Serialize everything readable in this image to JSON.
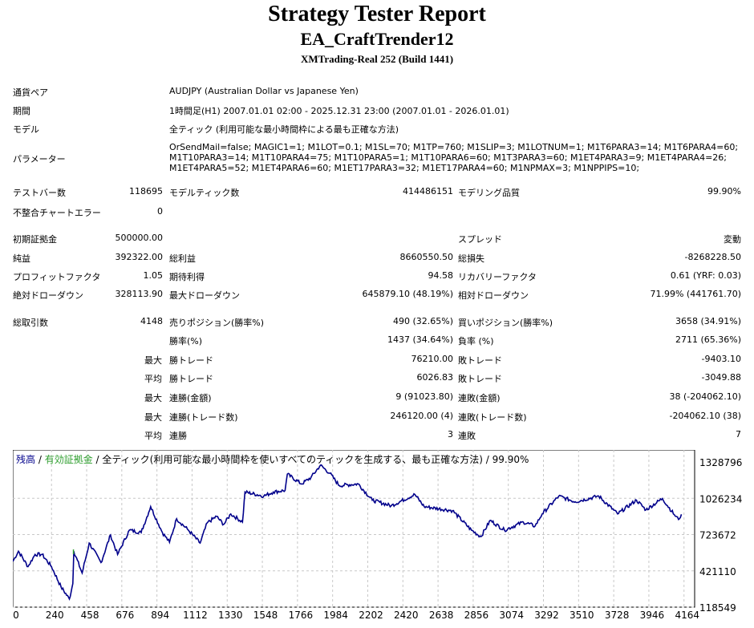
{
  "header": {
    "title": "Strategy Tester Report",
    "ea": "EA_CraftTrender12",
    "server": "XMTrading-Real 252 (Build 1441)"
  },
  "info": [
    {
      "label": "通貨ペア",
      "value": "AUDJPY (Australian Dollar vs Japanese Yen)"
    },
    {
      "label": "期間",
      "value": "1時間足(H1) 2007.01.01 02:00 - 2025.12.31 23:00 (2007.01.01 - 2026.01.01)"
    },
    {
      "label": "モデル",
      "value": "全ティック (利用可能な最小時間枠による最も正確な方法)"
    },
    {
      "label": "パラメーター",
      "value": "OrSendMail=false; MAGIC1=1; M1LOT=0.1; M1SL=70; M1TP=760; M1SLIP=3; M1LOTNUM=1; M1T6PARA3=14; M1T6PARA4=60; M1T10PARA3=14; M1T10PARA4=75; M1T10PARA5=1; M1T10PARA6=60; M1T3PARA3=60; M1ET4PARA3=9; M1ET4PARA4=26; M1ET4PARA5=52; M1ET4PARA6=60; M1ET17PARA3=32; M1ET17PARA4=60; M1NPMAX=3; M1NPPIPS=10;"
    }
  ],
  "stats": [
    [
      "テストバー数",
      "118695",
      "モデルティック数",
      "414486151",
      "モデリング品質",
      "99.90%"
    ],
    [
      "不整合チャートエラー",
      "0",
      "",
      "",
      "",
      ""
    ],
    [
      "初期証拠金",
      "500000.00",
      "",
      "",
      "スプレッド",
      "変動"
    ],
    [
      "純益",
      "392322.00",
      "総利益",
      "8660550.50",
      "総損失",
      "-8268228.50"
    ],
    [
      "プロフィットファクタ",
      "1.05",
      "期待利得",
      "94.58",
      "リカバリーファクタ",
      "0.61 (YRF: 0.03)"
    ],
    [
      "絶対ドローダウン",
      "328113.90",
      "最大ドローダウン",
      "645879.10 (48.19%)",
      "相対ドローダウン",
      "71.99% (441761.70)"
    ],
    [
      "総取引数",
      "4148",
      "売りポジション(勝率%)",
      "490 (32.65%)",
      "買いポジション(勝率%)",
      "3658 (34.91%)"
    ],
    [
      "",
      "",
      "勝率(%)",
      "1437 (34.64%)",
      "負率 (%)",
      "2711 (65.36%)"
    ],
    [
      "",
      "最大",
      "勝トレード",
      "76210.00",
      "敗トレード",
      "-9403.10"
    ],
    [
      "",
      "平均",
      "勝トレード",
      "6026.83",
      "敗トレード",
      "-3049.88"
    ],
    [
      "",
      "最大",
      "連勝(金額)",
      "9 (91023.80)",
      "連敗(金額)",
      "38 (-204062.10)"
    ],
    [
      "",
      "最大",
      "連勝(トレード数)",
      "246120.00 (4)",
      "連敗(トレード数)",
      "-204062.10 (38)"
    ],
    [
      "",
      "平均",
      "連勝",
      "3",
      "連敗",
      "7"
    ]
  ],
  "chart_data": {
    "type": "line",
    "legend": {
      "balance": "残高",
      "equity": "有効証拠金",
      "model": "全ティック(利用可能な最小時間枠を使いすべてのティックを生成する、最も正確な方法)",
      "quality": "99.90%"
    },
    "colors": {
      "balance": "#00008b",
      "equity": "#2e9e2e",
      "grid": "#c8c8c8"
    },
    "yticks": [
      1328796,
      1026234,
      723672,
      421110,
      118549
    ],
    "xticks": [
      0,
      240,
      458,
      676,
      894,
      1112,
      1330,
      1548,
      1766,
      1984,
      2202,
      2420,
      2638,
      2856,
      3074,
      3292,
      3510,
      3728,
      3946,
      4164
    ],
    "ylim": [
      118549,
      1429650
    ],
    "xlim": [
      0,
      4230
    ],
    "series": [
      {
        "name": "残高",
        "points": [
          [
            0,
            500000
          ],
          [
            35,
            585086
          ],
          [
            94,
            456627
          ],
          [
            138,
            558042
          ],
          [
            181,
            558042
          ],
          [
            240,
            456627
          ],
          [
            299,
            287602
          ],
          [
            351,
            186187
          ],
          [
            372,
            314646
          ],
          [
            378,
            585086
          ],
          [
            430,
            402539
          ],
          [
            474,
            652696
          ],
          [
            547,
            490432
          ],
          [
            606,
            720306
          ],
          [
            650,
            558042
          ],
          [
            723,
            760872
          ],
          [
            796,
            740589
          ],
          [
            855,
            956941
          ],
          [
            928,
            740589
          ],
          [
            972,
            659457
          ],
          [
            1016,
            855526
          ],
          [
            1089,
            760872
          ],
          [
            1162,
            652696
          ],
          [
            1206,
            821721
          ],
          [
            1264,
            875809
          ],
          [
            1308,
            808199
          ],
          [
            1352,
            896092
          ],
          [
            1425,
            828482
          ],
          [
            1440,
            1078639
          ],
          [
            1557,
            1044834
          ],
          [
            1616,
            1078639
          ],
          [
            1689,
            1092161
          ],
          [
            1703,
            1227381
          ],
          [
            1791,
            1146249
          ],
          [
            1850,
            1200337
          ],
          [
            1908,
            1301752
          ],
          [
            1967,
            1234142
          ],
          [
            2025,
            1132727
          ],
          [
            2143,
            1146249
          ],
          [
            2230,
            1011029
          ],
          [
            2347,
            963702
          ],
          [
            2494,
            1058356
          ],
          [
            2552,
            956941
          ],
          [
            2728,
            923136
          ],
          [
            2845,
            760872
          ],
          [
            2904,
            706784
          ],
          [
            2962,
            841999
          ],
          [
            3050,
            760872
          ],
          [
            3167,
            828482
          ],
          [
            3240,
            794677
          ],
          [
            3284,
            896092
          ],
          [
            3387,
            1044834
          ],
          [
            3489,
            997507
          ],
          [
            3635,
            1044834
          ],
          [
            3752,
            896092
          ],
          [
            3869,
            1011029
          ],
          [
            3928,
            929897
          ],
          [
            4030,
            1024551
          ],
          [
            4104,
            889331
          ],
          [
            4130,
            850000
          ],
          [
            4148,
            892322
          ]
        ]
      }
    ]
  }
}
